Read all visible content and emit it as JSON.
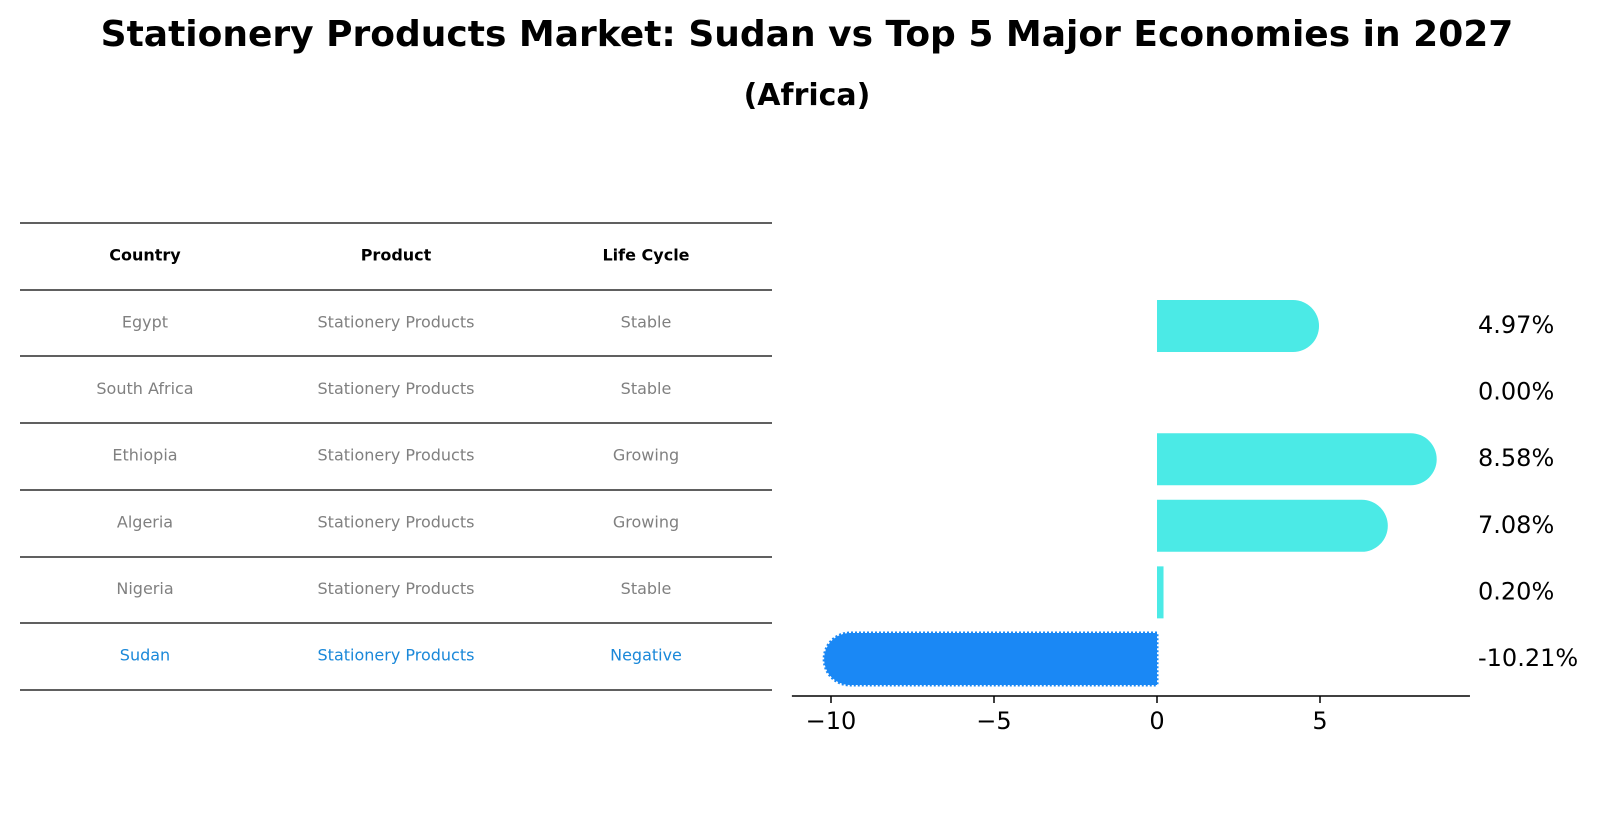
{
  "title": "Stationery Products Market: Sudan vs Top 5 Major Economies in 2027",
  "subtitle": "(Africa)",
  "table": {
    "headers": [
      "Country",
      "Product",
      "Life Cycle"
    ],
    "rows": [
      {
        "country": "Egypt",
        "product": "Stationery Products",
        "life_cycle": "Stable",
        "highlight": false
      },
      {
        "country": "South Africa",
        "product": "Stationery Products",
        "life_cycle": "Stable",
        "highlight": false
      },
      {
        "country": "Ethiopia",
        "product": "Stationery Products",
        "life_cycle": "Growing",
        "highlight": false
      },
      {
        "country": "Algeria",
        "product": "Stationery Products",
        "life_cycle": "Growing",
        "highlight": false
      },
      {
        "country": "Nigeria",
        "product": "Stationery Products",
        "life_cycle": "Stable",
        "highlight": false
      },
      {
        "country": "Sudan",
        "product": "Stationery Products",
        "life_cycle": "Negative",
        "highlight": true
      }
    ]
  },
  "colors": {
    "bar": "#4beae6",
    "highlight_bar": "#1a88f5",
    "highlight_text": "#1a88d9",
    "muted_text": "#808080"
  },
  "chart_data": {
    "type": "bar",
    "orientation": "horizontal",
    "categories": [
      "Egypt",
      "South Africa",
      "Ethiopia",
      "Algeria",
      "Nigeria",
      "Sudan"
    ],
    "values": [
      4.97,
      0.0,
      8.58,
      7.08,
      0.2,
      -10.21
    ],
    "value_labels": [
      "4.97%",
      "0.00%",
      "8.58%",
      "7.08%",
      "0.20%",
      "-10.21%"
    ],
    "highlight": "Sudan",
    "xticks": [
      -10,
      -5,
      0,
      5
    ],
    "xtick_labels": [
      "−10",
      "−5",
      "0",
      "5"
    ],
    "xlim": [
      -11.2,
      9.6
    ],
    "grid": false
  }
}
